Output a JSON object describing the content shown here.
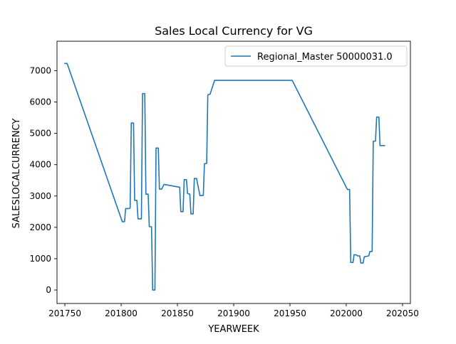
{
  "chart_data": {
    "type": "line",
    "title": "Sales Local Currency for VG",
    "xlabel": "YEARWEEK",
    "ylabel": "SALESLOCALCURRENCY",
    "xlim": [
      201743,
      202057
    ],
    "ylim": [
      -430,
      7940
    ],
    "xticks": [
      201750,
      201800,
      201850,
      201900,
      201950,
      202000,
      202050
    ],
    "xtick_labels": [
      "201750",
      "201800",
      "201850",
      "201900",
      "201950",
      "202000",
      "202050"
    ],
    "yticks": [
      0,
      1000,
      2000,
      3000,
      4000,
      5000,
      6000,
      7000
    ],
    "ytick_labels": [
      "0",
      "1000",
      "2000",
      "3000",
      "4000",
      "5000",
      "6000",
      "7000"
    ],
    "grid": false,
    "legend_position": "top-right",
    "series": [
      {
        "name": "Regional_Master 50000031.0",
        "color": "#1f77b4",
        "points": [
          [
            201750,
            7230
          ],
          [
            201752,
            7230
          ],
          [
            201801,
            2180
          ],
          [
            201803,
            2180
          ],
          [
            201804,
            2600
          ],
          [
            201807,
            2600
          ],
          [
            201808,
            2620
          ],
          [
            201809,
            5330
          ],
          [
            201811,
            5330
          ],
          [
            201812,
            2860
          ],
          [
            201814,
            2860
          ],
          [
            201815,
            2270
          ],
          [
            201818,
            2270
          ],
          [
            201819,
            6270
          ],
          [
            201821,
            6270
          ],
          [
            201822,
            3060
          ],
          [
            201824,
            3060
          ],
          [
            201825,
            2020
          ],
          [
            201827,
            2020
          ],
          [
            201828,
            0
          ],
          [
            201830,
            0
          ],
          [
            201831,
            4530
          ],
          [
            201833,
            4530
          ],
          [
            201834,
            3220
          ],
          [
            201836,
            3220
          ],
          [
            201838,
            3370
          ],
          [
            201852,
            3280
          ],
          [
            201853,
            2500
          ],
          [
            201855,
            2500
          ],
          [
            201856,
            3520
          ],
          [
            201858,
            3520
          ],
          [
            201859,
            3080
          ],
          [
            201861,
            3060
          ],
          [
            201862,
            2430
          ],
          [
            201864,
            2430
          ],
          [
            201865,
            3560
          ],
          [
            201867,
            3560
          ],
          [
            201870,
            3010
          ],
          [
            201873,
            3020
          ],
          [
            201874,
            4030
          ],
          [
            201876,
            4040
          ],
          [
            201877,
            6230
          ],
          [
            201879,
            6250
          ],
          [
            201883,
            6690
          ],
          [
            201952,
            6690
          ],
          [
            202001,
            3210
          ],
          [
            202003,
            3210
          ],
          [
            202004,
            880
          ],
          [
            202006,
            880
          ],
          [
            202007,
            1130
          ],
          [
            202009,
            1120
          ],
          [
            202010,
            1090
          ],
          [
            202012,
            1090
          ],
          [
            202013,
            860
          ],
          [
            202015,
            860
          ],
          [
            202016,
            1060
          ],
          [
            202020,
            1090
          ],
          [
            202021,
            1230
          ],
          [
            202023,
            1230
          ],
          [
            202024,
            4750
          ],
          [
            202026,
            4750
          ],
          [
            202027,
            5520
          ],
          [
            202029,
            5520
          ],
          [
            202030,
            4610
          ],
          [
            202034,
            4610
          ]
        ]
      }
    ]
  }
}
